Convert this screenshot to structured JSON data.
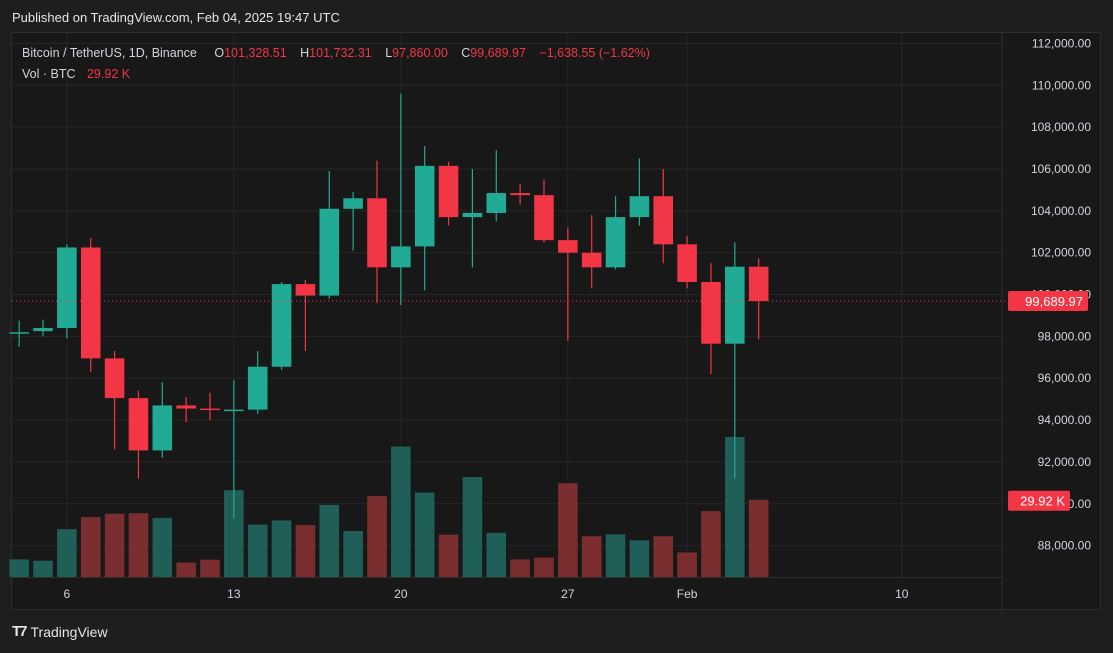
{
  "header": {
    "published": "Published on TradingView.com, Feb 04, 2025 19:47 UTC"
  },
  "legend": {
    "symbol": "Bitcoin / TetherUS, 1D, Binance",
    "open_label": "O",
    "open": "101,328.51",
    "high_label": "H",
    "high": "101,732.31",
    "low_label": "L",
    "low": "97,860.00",
    "close_label": "C",
    "close": "99,689.97",
    "change": "−1,638.55 (−1.62%)",
    "vol_label": "Vol · BTC",
    "vol": "29.92 K"
  },
  "footer": {
    "brand": "TradingView",
    "logo_icon": "tradingview-logo-icon"
  },
  "colors": {
    "up": "#22ab94",
    "down": "#f23645",
    "up_vol": "#1f5f57",
    "down_vol": "#7a2e30",
    "price_line": "#f23645"
  },
  "chart_data": {
    "type": "candlestick",
    "ylim": [
      86500,
      112500
    ],
    "y_ticks": [
      "112,000.00",
      "110,000.00",
      "108,000.00",
      "106,000.00",
      "104,000.00",
      "102,000.00",
      "100,000.00",
      "98,000.00",
      "96,000.00",
      "94,000.00",
      "92,000.00",
      "90,000.00",
      "88,000.00"
    ],
    "y_tick_values": [
      112000,
      110000,
      108000,
      106000,
      104000,
      102000,
      100000,
      98000,
      96000,
      94000,
      92000,
      90000,
      88000
    ],
    "x_ticks": [
      {
        "label": "6",
        "day": 6
      },
      {
        "label": "13",
        "day": 13
      },
      {
        "label": "20",
        "day": 20
      },
      {
        "label": "27",
        "day": 27
      },
      {
        "label": "Feb",
        "day": 32
      },
      {
        "label": "10",
        "day": 41
      }
    ],
    "x_range_days": [
      3.7,
      45.2
    ],
    "current_price": 99689.97,
    "current_price_label": "99,689.97",
    "current_volume_label": "29.92 K",
    "candles": [
      {
        "day": 4,
        "o": 98150,
        "h": 98750,
        "l": 97500,
        "c": 98200,
        "v": 6.8
      },
      {
        "day": 5,
        "o": 98250,
        "h": 98800,
        "l": 98000,
        "c": 98400,
        "v": 6.3
      },
      {
        "day": 6,
        "o": 98400,
        "h": 102400,
        "l": 97900,
        "c": 102250,
        "v": 18.5
      },
      {
        "day": 7,
        "o": 102250,
        "h": 102700,
        "l": 96300,
        "c": 96950,
        "v": 23.2
      },
      {
        "day": 8,
        "o": 96950,
        "h": 97300,
        "l": 92600,
        "c": 95050,
        "v": 24.5
      },
      {
        "day": 9,
        "o": 95050,
        "h": 95400,
        "l": 91200,
        "c": 92550,
        "v": 24.7
      },
      {
        "day": 10,
        "o": 92550,
        "h": 95800,
        "l": 92200,
        "c": 94700,
        "v": 22.9
      },
      {
        "day": 11,
        "o": 94700,
        "h": 95100,
        "l": 93900,
        "c": 94550,
        "v": 5.6
      },
      {
        "day": 12,
        "o": 94550,
        "h": 95300,
        "l": 94000,
        "c": 94500,
        "v": 6.7
      },
      {
        "day": 13,
        "o": 94500,
        "h": 95900,
        "l": 89300,
        "c": 94500,
        "v": 33.6
      },
      {
        "day": 14,
        "o": 94500,
        "h": 97300,
        "l": 94300,
        "c": 96550,
        "v": 20.3
      },
      {
        "day": 15,
        "o": 96550,
        "h": 100600,
        "l": 96400,
        "c": 100500,
        "v": 21.9
      },
      {
        "day": 16,
        "o": 100500,
        "h": 100700,
        "l": 97300,
        "c": 99950,
        "v": 20.1
      },
      {
        "day": 17,
        "o": 99950,
        "h": 105900,
        "l": 99800,
        "c": 104100,
        "v": 27.9
      },
      {
        "day": 18,
        "o": 104100,
        "h": 104900,
        "l": 102100,
        "c": 104600,
        "v": 17.8
      },
      {
        "day": 19,
        "o": 104600,
        "h": 106400,
        "l": 99600,
        "c": 101300,
        "v": 31.4
      },
      {
        "day": 20,
        "o": 101300,
        "h": 109600,
        "l": 99500,
        "c": 102300,
        "v": 50.5
      },
      {
        "day": 21,
        "o": 102300,
        "h": 107100,
        "l": 100200,
        "c": 106150,
        "v": 32.7
      },
      {
        "day": 22,
        "o": 106150,
        "h": 106350,
        "l": 103300,
        "c": 103700,
        "v": 16.4
      },
      {
        "day": 23,
        "o": 103700,
        "h": 106000,
        "l": 101300,
        "c": 103900,
        "v": 38.7
      },
      {
        "day": 24,
        "o": 103900,
        "h": 106900,
        "l": 103500,
        "c": 104850,
        "v": 17.1
      },
      {
        "day": 25,
        "o": 104850,
        "h": 105300,
        "l": 104300,
        "c": 104750,
        "v": 6.8
      },
      {
        "day": 26,
        "o": 104750,
        "h": 105500,
        "l": 102500,
        "c": 102600,
        "v": 7.5
      },
      {
        "day": 27,
        "o": 102600,
        "h": 103200,
        "l": 97800,
        "c": 102000,
        "v": 36.3
      },
      {
        "day": 28,
        "o": 102000,
        "h": 103800,
        "l": 100300,
        "c": 101300,
        "v": 15.8
      },
      {
        "day": 29,
        "o": 101300,
        "h": 104700,
        "l": 101200,
        "c": 103700,
        "v": 16.5
      },
      {
        "day": 30,
        "o": 103700,
        "h": 106500,
        "l": 103300,
        "c": 104700,
        "v": 14.2
      },
      {
        "day": 31,
        "o": 104700,
        "h": 106000,
        "l": 101500,
        "c": 102400,
        "v": 15.8
      },
      {
        "day": 32,
        "o": 102400,
        "h": 102800,
        "l": 100300,
        "c": 100600,
        "v": 9.5
      },
      {
        "day": 33,
        "o": 100600,
        "h": 101500,
        "l": 96200,
        "c": 97650,
        "v": 25.5
      },
      {
        "day": 34,
        "o": 97650,
        "h": 102500,
        "l": 91200,
        "c": 101330,
        "v": 54.2
      },
      {
        "day": 35,
        "o": 101330,
        "h": 101730,
        "l": 97860,
        "c": 99690,
        "v": 29.9
      }
    ]
  }
}
